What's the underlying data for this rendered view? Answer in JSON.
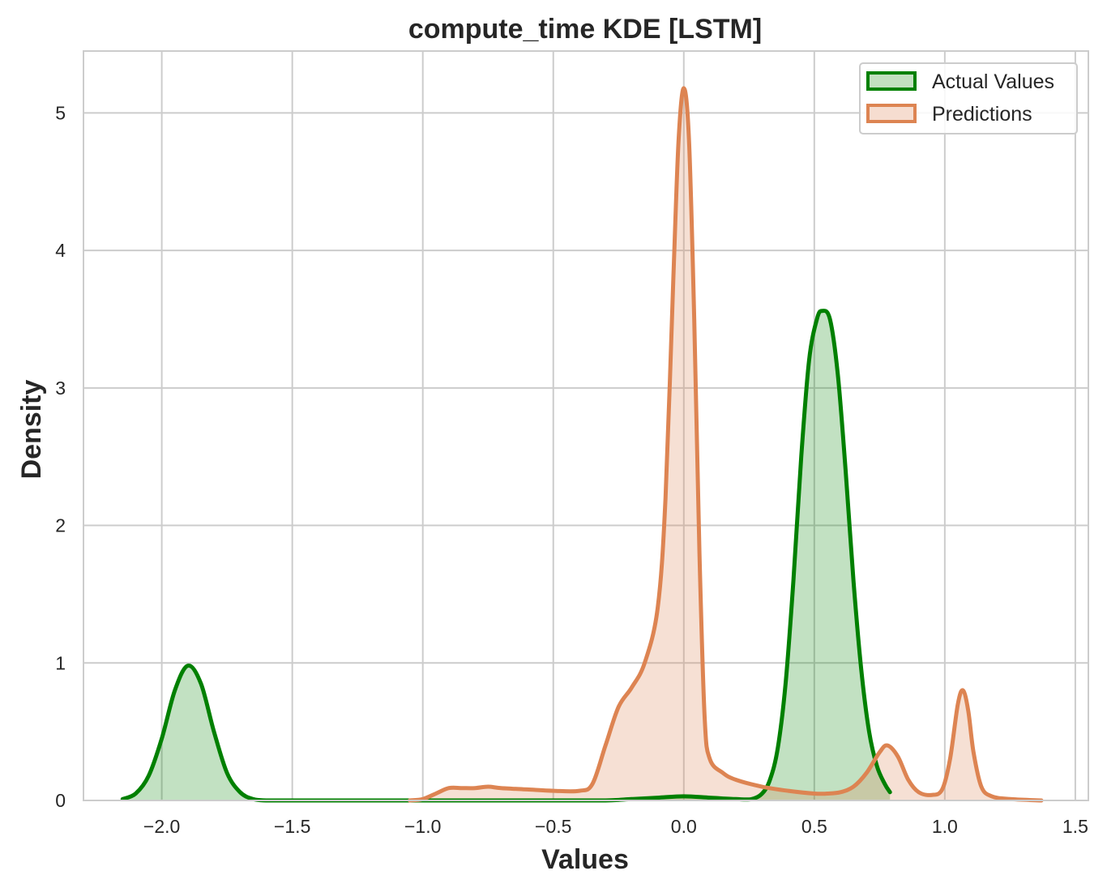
{
  "chart_data": {
    "type": "area",
    "title": "compute_time KDE [LSTM]",
    "xlabel": "Values",
    "ylabel": "Density",
    "xlim": [
      -2.3,
      1.55
    ],
    "ylim": [
      0,
      5.45
    ],
    "xticks": [
      -2.0,
      -1.5,
      -1.0,
      -0.5,
      0.0,
      0.5,
      1.0,
      1.5
    ],
    "xtick_labels": [
      "−2.0",
      "−1.5",
      "−1.0",
      "−0.5",
      "0.0",
      "0.5",
      "1.0",
      "1.5"
    ],
    "yticks": [
      0,
      1,
      2,
      3,
      4,
      5
    ],
    "ytick_labels": [
      "0",
      "1",
      "2",
      "3",
      "4",
      "5"
    ],
    "grid": true,
    "legend_position": "top-right",
    "series": [
      {
        "name": "Actual Values",
        "color": "#008000",
        "fill_color": "#c2e0c0",
        "x": [
          -2.15,
          -2.1,
          -2.05,
          -2.0,
          -1.95,
          -1.9,
          -1.85,
          -1.8,
          -1.75,
          -1.7,
          -1.65,
          -1.6,
          -1.5,
          -1.0,
          -0.5,
          -0.3,
          -0.2,
          -0.1,
          0.0,
          0.1,
          0.2,
          0.26,
          0.3,
          0.33,
          0.36,
          0.39,
          0.42,
          0.45,
          0.48,
          0.51,
          0.53,
          0.56,
          0.59,
          0.62,
          0.65,
          0.68,
          0.71,
          0.74,
          0.77,
          0.79
        ],
        "y": [
          0.01,
          0.05,
          0.18,
          0.45,
          0.8,
          0.98,
          0.85,
          0.5,
          0.2,
          0.06,
          0.01,
          0.0,
          0.0,
          0.0,
          0.0,
          0.0,
          0.01,
          0.02,
          0.03,
          0.02,
          0.01,
          0.01,
          0.05,
          0.15,
          0.38,
          0.85,
          1.6,
          2.5,
          3.2,
          3.5,
          3.56,
          3.5,
          3.1,
          2.4,
          1.6,
          0.95,
          0.5,
          0.25,
          0.12,
          0.06
        ]
      },
      {
        "name": "Predictions",
        "color": "#dd8452",
        "fill_color": "#f6ddd0",
        "x": [
          -1.05,
          -1.0,
          -0.95,
          -0.9,
          -0.85,
          -0.8,
          -0.75,
          -0.7,
          -0.6,
          -0.5,
          -0.4,
          -0.35,
          -0.3,
          -0.25,
          -0.2,
          -0.15,
          -0.1,
          -0.07,
          -0.04,
          -0.02,
          0.0,
          0.02,
          0.04,
          0.06,
          0.08,
          0.1,
          0.15,
          0.2,
          0.3,
          0.4,
          0.5,
          0.55,
          0.6,
          0.65,
          0.7,
          0.75,
          0.78,
          0.82,
          0.86,
          0.9,
          0.95,
          0.99,
          1.02,
          1.05,
          1.07,
          1.09,
          1.11,
          1.14,
          1.18,
          1.25,
          1.37
        ],
        "y": [
          0.0,
          0.01,
          0.05,
          0.09,
          0.09,
          0.09,
          0.1,
          0.09,
          0.08,
          0.07,
          0.07,
          0.12,
          0.4,
          0.68,
          0.82,
          1.0,
          1.4,
          2.2,
          3.8,
          4.8,
          5.18,
          4.8,
          3.5,
          1.8,
          0.6,
          0.3,
          0.2,
          0.15,
          0.1,
          0.07,
          0.05,
          0.05,
          0.06,
          0.1,
          0.2,
          0.35,
          0.4,
          0.32,
          0.15,
          0.06,
          0.04,
          0.08,
          0.3,
          0.7,
          0.8,
          0.65,
          0.35,
          0.1,
          0.03,
          0.01,
          0.0
        ]
      }
    ]
  }
}
